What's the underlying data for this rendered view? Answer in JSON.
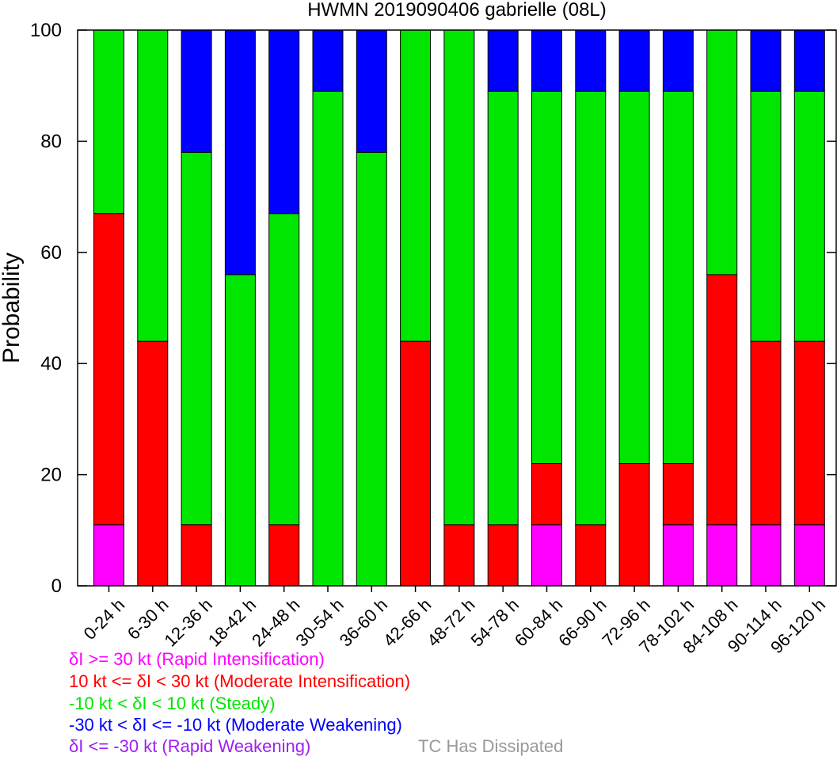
{
  "chart_data": {
    "type": "bar",
    "stacked": true,
    "title": "HWMN 2019090406 gabrielle (08L)",
    "ylabel": "Probability",
    "xlabel": "",
    "ylim": [
      0,
      100
    ],
    "yticks": [
      0,
      20,
      40,
      60,
      80,
      100
    ],
    "grid": false,
    "categories": [
      "0-24 h",
      "6-30 h",
      "12-36 h",
      "18-42 h",
      "24-48 h",
      "30-54 h",
      "36-60 h",
      "42-66 h",
      "48-72 h",
      "54-78 h",
      "60-84 h",
      "66-90 h",
      "72-96 h",
      "78-102 h",
      "84-108 h",
      "90-114 h",
      "96-120 h"
    ],
    "series": [
      {
        "name": "Rapid Intensification",
        "color": "#ff00ff",
        "values": [
          11,
          0,
          0,
          0,
          0,
          0,
          0,
          0,
          0,
          0,
          11,
          0,
          0,
          11,
          11,
          11,
          11
        ]
      },
      {
        "name": "Moderate Intensification",
        "color": "#ff0000",
        "values": [
          56,
          44,
          11,
          0,
          11,
          0,
          0,
          44,
          11,
          11,
          11,
          11,
          22,
          11,
          45,
          33,
          33
        ]
      },
      {
        "name": "Steady",
        "color": "#00e600",
        "values": [
          33,
          56,
          67,
          56,
          56,
          89,
          78,
          56,
          89,
          78,
          67,
          78,
          67,
          67,
          44,
          45,
          45
        ]
      },
      {
        "name": "Moderate Weakening",
        "color": "#0000ff",
        "values": [
          0,
          0,
          22,
          44,
          33,
          11,
          22,
          0,
          0,
          11,
          11,
          11,
          11,
          11,
          0,
          11,
          11
        ]
      },
      {
        "name": "Rapid Weakening",
        "color": "#a020f0",
        "values": [
          0,
          0,
          0,
          0,
          0,
          0,
          0,
          0,
          0,
          0,
          0,
          0,
          0,
          0,
          0,
          0,
          0
        ]
      },
      {
        "name": "TC Has Dissipated",
        "color": "#999999",
        "values": [
          0,
          0,
          0,
          0,
          0,
          0,
          0,
          0,
          0,
          0,
          0,
          0,
          0,
          0,
          0,
          0,
          0
        ]
      }
    ]
  },
  "legend": [
    {
      "text": "δI >= 30 kt (Rapid Intensification)",
      "color": "#ff00ff"
    },
    {
      "text": "10 kt <= δI < 30 kt (Moderate Intensification)",
      "color": "#ff0000"
    },
    {
      "text": "-10 kt < δI < 10 kt (Steady)",
      "color": "#00e600"
    },
    {
      "text": "-30 kt < δI <= -10 kt (Moderate Weakening)",
      "color": "#0000ff"
    },
    {
      "text": "δI <= -30 kt (Rapid Weakening)",
      "color": "#a020f0"
    },
    {
      "text": "TC Has Dissipated",
      "color": "#999999"
    }
  ]
}
